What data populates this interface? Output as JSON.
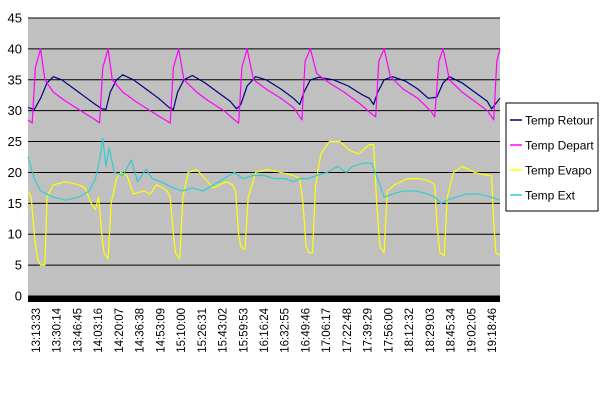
{
  "chart_data": {
    "type": "line",
    "title": "",
    "xlabel": "",
    "ylabel": "",
    "ylim": [
      0,
      45
    ],
    "yticks": [
      0,
      5,
      10,
      15,
      20,
      25,
      30,
      35,
      40,
      45
    ],
    "grid": "horizontal",
    "legend_position": "right",
    "plot_background": "#c0c0c0",
    "x_tick_labels": [
      "13:13:33",
      "13:30:14",
      "13:46:45",
      "14:03:16",
      "14:20:07",
      "14:36:38",
      "14:53:09",
      "15:10:00",
      "15:26:31",
      "15:43:02",
      "15:59:53",
      "16:16:24",
      "16:32:55",
      "16:49:46",
      "17:06:17",
      "17:22:48",
      "17:39:29",
      "17:56:00",
      "18:12:32",
      "18:29:03",
      "18:45:34",
      "19:02:05",
      "19:18:46"
    ],
    "x_range": [
      0,
      22.4
    ],
    "series": [
      {
        "name": "Temp Retour",
        "color": "#000080",
        "points": [
          [
            0,
            30.5
          ],
          [
            0.3,
            30.2
          ],
          [
            0.6,
            32
          ],
          [
            0.9,
            34.5
          ],
          [
            1.2,
            35.5
          ],
          [
            1.6,
            35
          ],
          [
            2.2,
            33.5
          ],
          [
            2.8,
            32
          ],
          [
            3.2,
            31
          ],
          [
            3.5,
            30.3
          ],
          [
            3.7,
            30.2
          ],
          [
            3.9,
            33
          ],
          [
            4.2,
            35
          ],
          [
            4.5,
            35.8
          ],
          [
            5,
            35
          ],
          [
            5.6,
            33.5
          ],
          [
            6.2,
            32
          ],
          [
            6.7,
            30.5
          ],
          [
            6.9,
            30.2
          ],
          [
            7.1,
            33
          ],
          [
            7.4,
            35
          ],
          [
            7.8,
            35.7
          ],
          [
            8.4,
            34.5
          ],
          [
            9,
            33
          ],
          [
            9.6,
            31.5
          ],
          [
            9.9,
            30.3
          ],
          [
            10.1,
            31
          ],
          [
            10.4,
            34
          ],
          [
            10.8,
            35.5
          ],
          [
            11.3,
            35
          ],
          [
            12,
            33.5
          ],
          [
            12.6,
            32
          ],
          [
            12.9,
            31
          ],
          [
            13.1,
            33
          ],
          [
            13.4,
            35
          ],
          [
            13.8,
            35.4
          ],
          [
            14.5,
            35
          ],
          [
            15.2,
            34
          ],
          [
            15.9,
            32.5
          ],
          [
            16.2,
            32
          ],
          [
            16.4,
            31
          ],
          [
            16.6,
            33
          ],
          [
            16.9,
            35
          ],
          [
            17.3,
            35.5
          ],
          [
            17.9,
            34.8
          ],
          [
            18.5,
            33.5
          ],
          [
            19,
            32
          ],
          [
            19.4,
            32.2
          ],
          [
            19.7,
            34.5
          ],
          [
            20,
            35.5
          ],
          [
            20.6,
            34.5
          ],
          [
            21.2,
            33
          ],
          [
            21.8,
            31.5
          ],
          [
            22,
            30.3
          ],
          [
            22.4,
            32
          ]
        ]
      },
      {
        "name": "Temp Depart",
        "color": "#ff00ff",
        "points": [
          [
            0,
            28.5
          ],
          [
            0.2,
            28
          ],
          [
            0.35,
            37
          ],
          [
            0.6,
            40
          ],
          [
            0.8,
            35
          ],
          [
            1.2,
            33
          ],
          [
            1.8,
            31.5
          ],
          [
            2.5,
            30
          ],
          [
            3.2,
            28.5
          ],
          [
            3.4,
            28
          ],
          [
            3.55,
            37
          ],
          [
            3.8,
            40
          ],
          [
            4,
            35
          ],
          [
            4.5,
            33
          ],
          [
            5.1,
            31.5
          ],
          [
            5.8,
            30
          ],
          [
            6.5,
            28.5
          ],
          [
            6.75,
            28
          ],
          [
            6.9,
            37
          ],
          [
            7.15,
            40
          ],
          [
            7.4,
            35
          ],
          [
            8,
            33
          ],
          [
            8.6,
            31.5
          ],
          [
            9.3,
            30
          ],
          [
            9.8,
            28.5
          ],
          [
            10,
            28
          ],
          [
            10.15,
            37
          ],
          [
            10.4,
            40
          ],
          [
            10.7,
            35
          ],
          [
            11.3,
            33.5
          ],
          [
            12,
            32
          ],
          [
            12.6,
            30.5
          ],
          [
            12.9,
            29
          ],
          [
            13,
            28.5
          ],
          [
            13.15,
            38
          ],
          [
            13.4,
            40
          ],
          [
            13.7,
            36
          ],
          [
            14.3,
            34.5
          ],
          [
            15,
            33
          ],
          [
            15.8,
            31
          ],
          [
            16.3,
            29.5
          ],
          [
            16.5,
            29
          ],
          [
            16.65,
            38
          ],
          [
            16.9,
            40
          ],
          [
            17.2,
            35.5
          ],
          [
            17.8,
            33.5
          ],
          [
            18.5,
            32
          ],
          [
            19.1,
            30
          ],
          [
            19.3,
            29
          ],
          [
            19.5,
            38
          ],
          [
            19.7,
            40
          ],
          [
            20,
            35
          ],
          [
            20.6,
            33
          ],
          [
            21.2,
            31.5
          ],
          [
            21.8,
            30
          ],
          [
            22.1,
            28.5
          ],
          [
            22.25,
            38
          ],
          [
            22.4,
            40
          ]
        ]
      },
      {
        "name": "Temp Evapo",
        "color": "#ffff00",
        "points": [
          [
            0,
            17
          ],
          [
            0.15,
            16
          ],
          [
            0.3,
            10
          ],
          [
            0.45,
            6
          ],
          [
            0.6,
            5
          ],
          [
            0.8,
            5
          ],
          [
            0.9,
            16
          ],
          [
            1.2,
            18
          ],
          [
            1.8,
            18.5
          ],
          [
            2.4,
            18
          ],
          [
            2.7,
            17.5
          ],
          [
            3,
            15
          ],
          [
            3.2,
            14
          ],
          [
            3.35,
            16
          ],
          [
            3.5,
            10
          ],
          [
            3.6,
            7
          ],
          [
            3.8,
            6
          ],
          [
            3.95,
            15
          ],
          [
            4.2,
            19
          ],
          [
            4.4,
            20
          ],
          [
            4.7,
            19.5
          ],
          [
            5,
            16.5
          ],
          [
            5.5,
            17
          ],
          [
            5.8,
            16.5
          ],
          [
            6.1,
            18
          ],
          [
            6.4,
            17.5
          ],
          [
            6.6,
            17
          ],
          [
            6.75,
            16
          ],
          [
            6.9,
            10
          ],
          [
            7,
            7
          ],
          [
            7.2,
            6
          ],
          [
            7.35,
            16
          ],
          [
            7.6,
            20
          ],
          [
            8,
            20.5
          ],
          [
            8.4,
            19
          ],
          [
            8.8,
            17.5
          ],
          [
            9.4,
            18.5
          ],
          [
            9.7,
            18
          ],
          [
            9.85,
            17
          ],
          [
            10,
            10
          ],
          [
            10.1,
            8
          ],
          [
            10.3,
            7.5
          ],
          [
            10.45,
            16
          ],
          [
            10.8,
            20
          ],
          [
            11.4,
            20.5
          ],
          [
            12,
            20
          ],
          [
            12.6,
            19.5
          ],
          [
            12.9,
            19
          ],
          [
            13.05,
            15
          ],
          [
            13.2,
            8
          ],
          [
            13.35,
            7
          ],
          [
            13.5,
            7
          ],
          [
            13.65,
            18
          ],
          [
            13.9,
            23
          ],
          [
            14.3,
            25
          ],
          [
            14.8,
            25
          ],
          [
            15.3,
            23.5
          ],
          [
            15.7,
            23
          ],
          [
            16.2,
            24.5
          ],
          [
            16.4,
            24.5
          ],
          [
            16.55,
            15
          ],
          [
            16.7,
            8
          ],
          [
            16.9,
            7
          ],
          [
            17.05,
            17
          ],
          [
            17.4,
            18
          ],
          [
            18,
            19
          ],
          [
            18.6,
            19
          ],
          [
            19.1,
            18.5
          ],
          [
            19.3,
            18
          ],
          [
            19.4,
            12
          ],
          [
            19.55,
            7
          ],
          [
            19.75,
            6.5
          ],
          [
            19.9,
            16
          ],
          [
            20.2,
            20
          ],
          [
            20.6,
            21
          ],
          [
            21.2,
            20
          ],
          [
            21.8,
            19.5
          ],
          [
            22,
            19.5
          ],
          [
            22.1,
            12
          ],
          [
            22.2,
            7
          ],
          [
            22.4,
            6.5
          ]
        ]
      },
      {
        "name": "Temp Ext",
        "color": "#33cccc",
        "points": [
          [
            0,
            22.5
          ],
          [
            0.3,
            19
          ],
          [
            0.6,
            17
          ],
          [
            1.2,
            16
          ],
          [
            1.8,
            15.5
          ],
          [
            2.4,
            16
          ],
          [
            2.9,
            17
          ],
          [
            3.2,
            19
          ],
          [
            3.4,
            22
          ],
          [
            3.55,
            25.5
          ],
          [
            3.7,
            21
          ],
          [
            3.85,
            24
          ],
          [
            4.1,
            20
          ],
          [
            4.5,
            19.5
          ],
          [
            4.9,
            22
          ],
          [
            5.2,
            18.5
          ],
          [
            5.6,
            20.5
          ],
          [
            5.9,
            19
          ],
          [
            6.3,
            18.5
          ],
          [
            6.6,
            18
          ],
          [
            6.9,
            17.5
          ],
          [
            7.3,
            17
          ],
          [
            7.8,
            17.5
          ],
          [
            8.3,
            17
          ],
          [
            8.8,
            18
          ],
          [
            9.3,
            19
          ],
          [
            9.8,
            20
          ],
          [
            10.2,
            19
          ],
          [
            10.7,
            19.5
          ],
          [
            11.2,
            19.5
          ],
          [
            11.7,
            19
          ],
          [
            12.2,
            19
          ],
          [
            12.6,
            18.5
          ],
          [
            12.9,
            19
          ],
          [
            13.3,
            19
          ],
          [
            13.7,
            19.5
          ],
          [
            14.2,
            20
          ],
          [
            14.7,
            21
          ],
          [
            15.1,
            20
          ],
          [
            15.4,
            21
          ],
          [
            15.9,
            21.5
          ],
          [
            16.3,
            21.5
          ],
          [
            16.6,
            19
          ],
          [
            16.9,
            16
          ],
          [
            17.3,
            16.5
          ],
          [
            17.8,
            17
          ],
          [
            18.4,
            17
          ],
          [
            19,
            16.5
          ],
          [
            19.3,
            16
          ],
          [
            19.6,
            15
          ],
          [
            19.9,
            15.5
          ],
          [
            20.3,
            16
          ],
          [
            20.8,
            16.5
          ],
          [
            21.4,
            16.5
          ],
          [
            22,
            16
          ],
          [
            22.4,
            15.5
          ]
        ]
      }
    ]
  }
}
